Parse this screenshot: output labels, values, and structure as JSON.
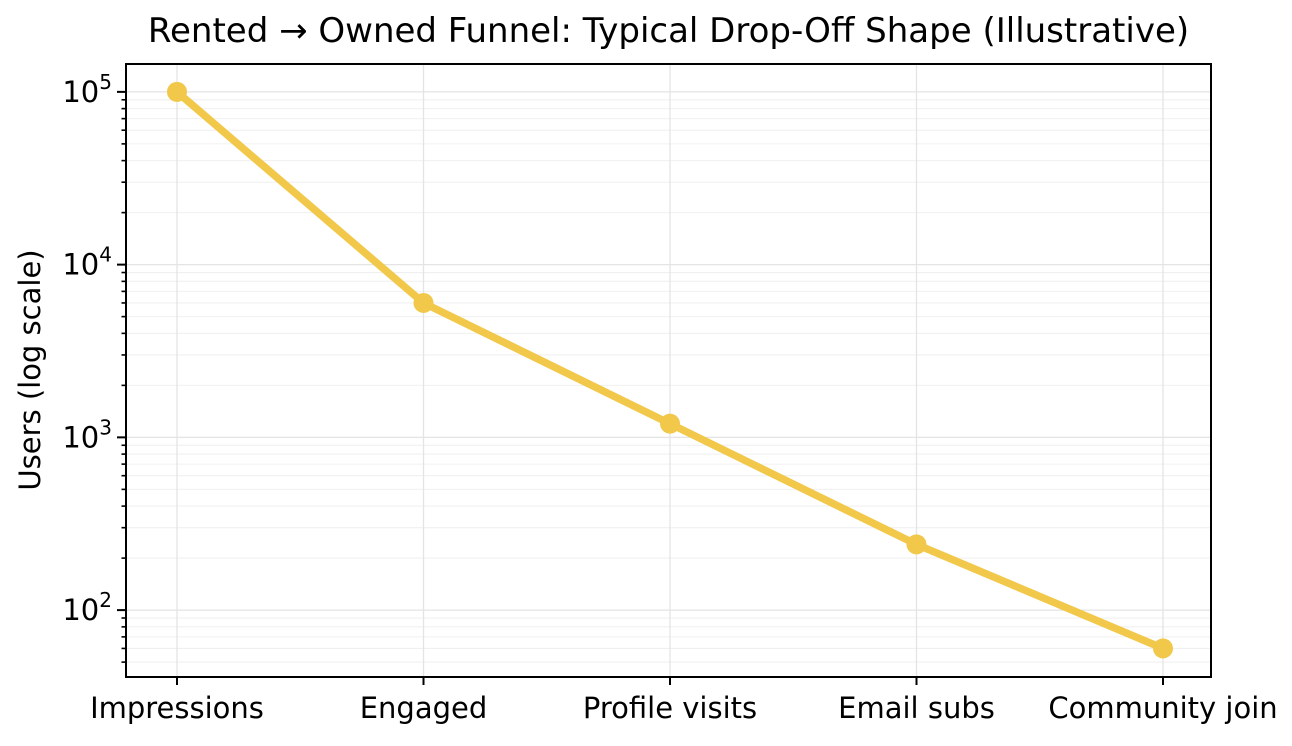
{
  "chart_data": {
    "type": "line",
    "title": "Rented → Owned Funnel: Typical Drop-Off Shape (Illustrative)",
    "ylabel": "Users (log scale)",
    "xlabel": "",
    "yscale": "log",
    "categories": [
      "Impressions",
      "Engaged",
      "Profile visits",
      "Email subs",
      "Community join"
    ],
    "values": [
      100000,
      6000,
      1200,
      240,
      60
    ],
    "ylim": [
      41,
      145000
    ],
    "y_major_ticks": [
      100,
      1000,
      10000,
      100000
    ],
    "y_major_tick_exponents": [
      2,
      3,
      4,
      5
    ],
    "grid": "both",
    "legend_position": "none",
    "line_color": "#F2C84A",
    "marker_style": "circle",
    "text_color": "#000000",
    "axis_color": "#000000",
    "background_color": "#FFFFFF",
    "grid_color_major": "#E4E4E4",
    "grid_color_minor": "#F0F0F0"
  }
}
